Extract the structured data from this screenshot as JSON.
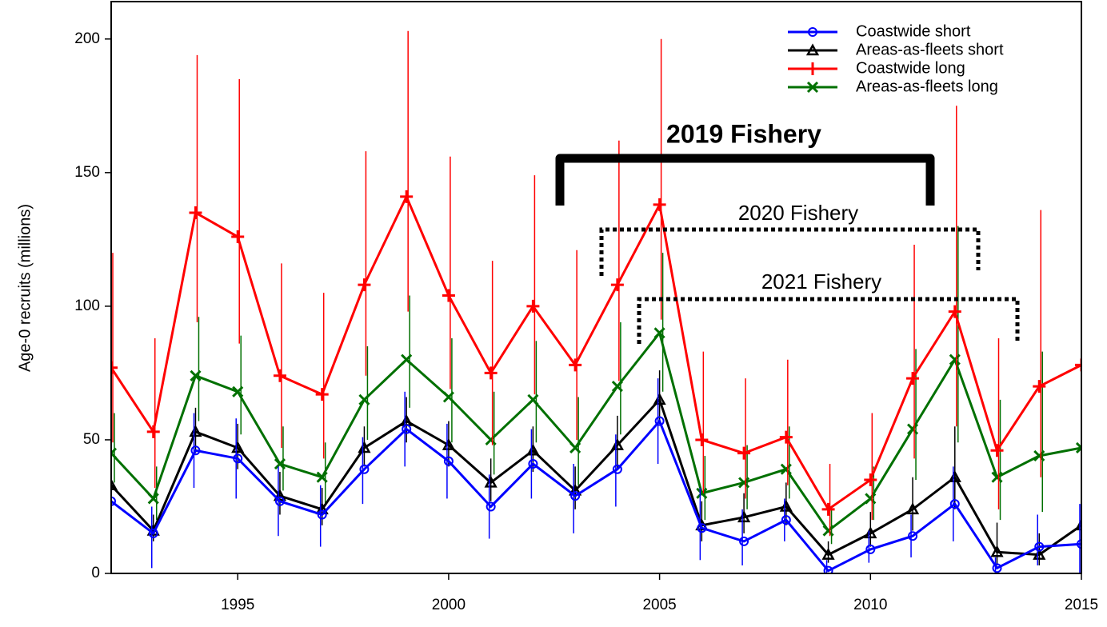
{
  "chart_data": {
    "type": "line",
    "y_label": "Age-0 recruits (millions)",
    "x": [
      1992,
      1993,
      1994,
      1995,
      1996,
      1997,
      1998,
      1999,
      2000,
      2001,
      2002,
      2003,
      2004,
      2005,
      2006,
      2007,
      2008,
      2009,
      2010,
      2011,
      2012,
      2013,
      2014,
      2015
    ],
    "xlim": [
      1992,
      2015
    ],
    "xticks": [
      1995,
      2000,
      2005,
      2010,
      2015
    ],
    "ylim": [
      0,
      214
    ],
    "yticks": [
      0,
      50,
      100,
      150,
      200
    ],
    "legend": "top-right",
    "series": [
      {
        "name": "Coastwide short",
        "color": "#0000ff",
        "marker": "circle",
        "values": [
          27,
          15,
          46,
          43,
          27,
          22,
          39,
          54,
          42,
          25,
          41,
          29,
          39,
          57,
          17,
          12,
          20,
          1,
          9,
          14,
          26,
          2,
          10,
          11
        ],
        "lower": [
          21,
          2,
          32,
          28,
          14,
          10,
          26,
          40,
          28,
          13,
          28,
          15,
          25,
          41,
          5,
          3,
          12,
          0,
          4,
          6,
          12,
          0,
          3,
          0
        ],
        "upper": [
          35,
          25,
          60,
          58,
          40,
          33,
          51,
          68,
          56,
          37,
          54,
          41,
          52,
          73,
          32,
          24,
          28,
          5,
          16,
          22,
          40,
          6,
          22,
          26
        ]
      },
      {
        "name": "Areas-as-fleets short",
        "color": "#000000",
        "marker": "triangle",
        "values": [
          33,
          16,
          53,
          47,
          29,
          24,
          47,
          57,
          48,
          34,
          46,
          31,
          48,
          65,
          18,
          21,
          25,
          7,
          15,
          24,
          36,
          8,
          7,
          18
        ],
        "lower": [
          27,
          12,
          45,
          39,
          22,
          18,
          40,
          49,
          40,
          27,
          38,
          24,
          39,
          56,
          12,
          15,
          18,
          4,
          10,
          16,
          24,
          3,
          3,
          13
        ],
        "upper": [
          40,
          22,
          62,
          56,
          38,
          32,
          55,
          66,
          57,
          43,
          55,
          40,
          59,
          76,
          27,
          30,
          34,
          12,
          23,
          36,
          55,
          19,
          15,
          25
        ]
      },
      {
        "name": "Coastwide long",
        "color": "#ff0000",
        "marker": "plus",
        "values": [
          77,
          53,
          135,
          126,
          74,
          67,
          108,
          141,
          104,
          75,
          100,
          78,
          108,
          138,
          50,
          45,
          51,
          24,
          35,
          73,
          98,
          46,
          70,
          78
        ],
        "lower": [
          49,
          32,
          94,
          86,
          47,
          43,
          74,
          98,
          69,
          48,
          67,
          50,
          72,
          95,
          30,
          28,
          33,
          14,
          20,
          43,
          55,
          24,
          36,
          46
        ],
        "upper": [
          120,
          88,
          194,
          185,
          116,
          105,
          158,
          203,
          156,
          117,
          149,
          121,
          162,
          200,
          83,
          73,
          80,
          41,
          60,
          123,
          175,
          88,
          136,
          133
        ]
      },
      {
        "name": "Areas-as-fleets long",
        "color": "#007000",
        "marker": "cross",
        "values": [
          45,
          28,
          74,
          68,
          41,
          36,
          65,
          80,
          66,
          50,
          65,
          47,
          70,
          90,
          30,
          34,
          39,
          16,
          28,
          54,
          80,
          36,
          44,
          47
        ],
        "lower": [
          34,
          20,
          57,
          52,
          31,
          26,
          50,
          62,
          49,
          37,
          49,
          33,
          52,
          68,
          20,
          24,
          28,
          11,
          20,
          35,
          49,
          20,
          23,
          32
        ],
        "upper": [
          60,
          40,
          96,
          89,
          55,
          49,
          85,
          104,
          88,
          68,
          87,
          66,
          94,
          120,
          44,
          48,
          55,
          24,
          40,
          84,
          130,
          65,
          83,
          70
        ]
      }
    ],
    "annotations": [
      "2019 Fishery",
      "2020 Fishery",
      "2021 Fishery"
    ]
  }
}
